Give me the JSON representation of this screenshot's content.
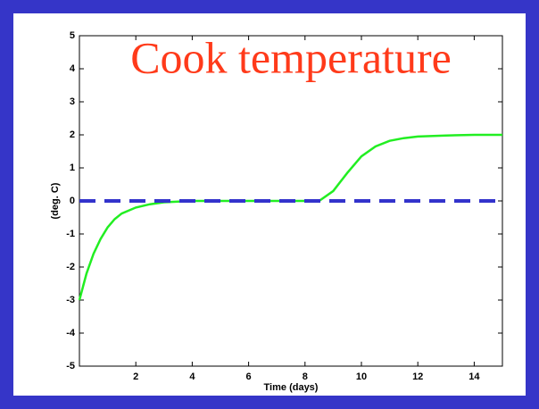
{
  "chart_data": {
    "type": "line",
    "title": "Cook temperature",
    "xlabel": "Time (days)",
    "ylabel": "(deg. C)",
    "x": [
      0,
      0.25,
      0.5,
      0.75,
      1,
      1.25,
      1.5,
      2,
      2.5,
      3,
      4,
      5,
      6,
      7,
      8,
      8.5,
      9,
      9.5,
      10,
      10.5,
      11,
      11.5,
      12,
      13,
      14,
      15
    ],
    "series": [
      {
        "color": "#22ee22",
        "style": "solid",
        "values": [
          -3,
          -2.2,
          -1.6,
          -1.15,
          -0.8,
          -0.55,
          -0.38,
          -0.2,
          -0.1,
          -0.04,
          0,
          0,
          0,
          0,
          0,
          0,
          0.3,
          0.85,
          1.35,
          1.65,
          1.82,
          1.9,
          1.95,
          1.98,
          2,
          2
        ]
      },
      {
        "color": "#3333cc",
        "style": "dashed",
        "values": [
          0,
          0,
          0,
          0,
          0,
          0,
          0,
          0,
          0,
          0,
          0,
          0,
          0,
          0,
          0,
          0,
          0,
          0,
          0,
          0,
          0,
          0,
          0,
          0,
          0,
          0
        ]
      }
    ],
    "xlim": [
      0,
      15
    ],
    "xticks": [
      2,
      4,
      6,
      8,
      10,
      12,
      14
    ],
    "ylim": [
      -5,
      5
    ],
    "yticks": [
      -5,
      -4,
      -3,
      -2,
      -1,
      0,
      1,
      2,
      3,
      4,
      5
    ],
    "grid": false
  }
}
